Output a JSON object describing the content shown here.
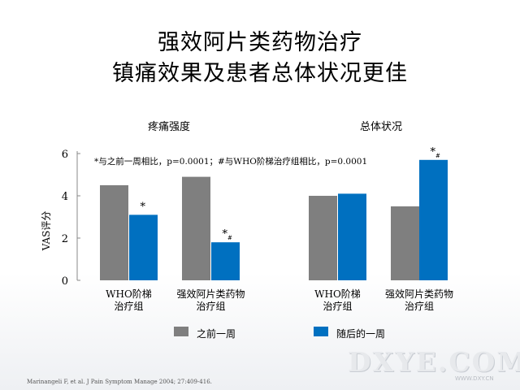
{
  "slide": {
    "title_line1": "强效阿片类药物治疗",
    "title_line2": "镇痛效果及患者总体状况更佳",
    "panel_titles": [
      "疼痛强度",
      "总体状况"
    ],
    "footer": "Marinangeli F, et al. J Pain Symptom Manage 2004; 27:409-416.",
    "watermark": "DXYE.COM",
    "watermark_sub": "WWW.DXY.CN"
  },
  "legend": [
    {
      "label": "之前一周",
      "color": "#7f7f7f"
    },
    {
      "label": "随后的一周",
      "color": "#0070c0"
    }
  ],
  "chart_data": {
    "type": "bar",
    "ylabel": "VAS评分",
    "ylim": [
      0,
      7
    ],
    "yticks": [
      "0",
      "2",
      "4",
      "6"
    ],
    "annotation": "*与之前一周相比，p=0.0001；#与WHO阶梯治疗组相比，p=0.0001",
    "panels": [
      {
        "title": "疼痛强度",
        "categories": [
          "WHO阶梯\n治疗组",
          "强效阿片类药物\n治疗组"
        ],
        "series": [
          {
            "name": "之前一周",
            "values": [
              4.5,
              4.9
            ]
          },
          {
            "name": "随后的一周",
            "values": [
              3.1,
              1.8
            ]
          }
        ],
        "marks": [
          [
            "",
            ""
          ],
          [
            "*",
            "*#"
          ]
        ]
      },
      {
        "title": "总体状况",
        "categories": [
          "WHO阶梯\n治疗组",
          "强效阿片类药物\n治疗组"
        ],
        "series": [
          {
            "name": "之前一周",
            "values": [
              4.0,
              3.5
            ]
          },
          {
            "name": "随后的一周",
            "values": [
              4.1,
              5.7
            ]
          }
        ],
        "marks": [
          [
            "",
            ""
          ],
          [
            "",
            "*#"
          ]
        ]
      }
    ]
  }
}
